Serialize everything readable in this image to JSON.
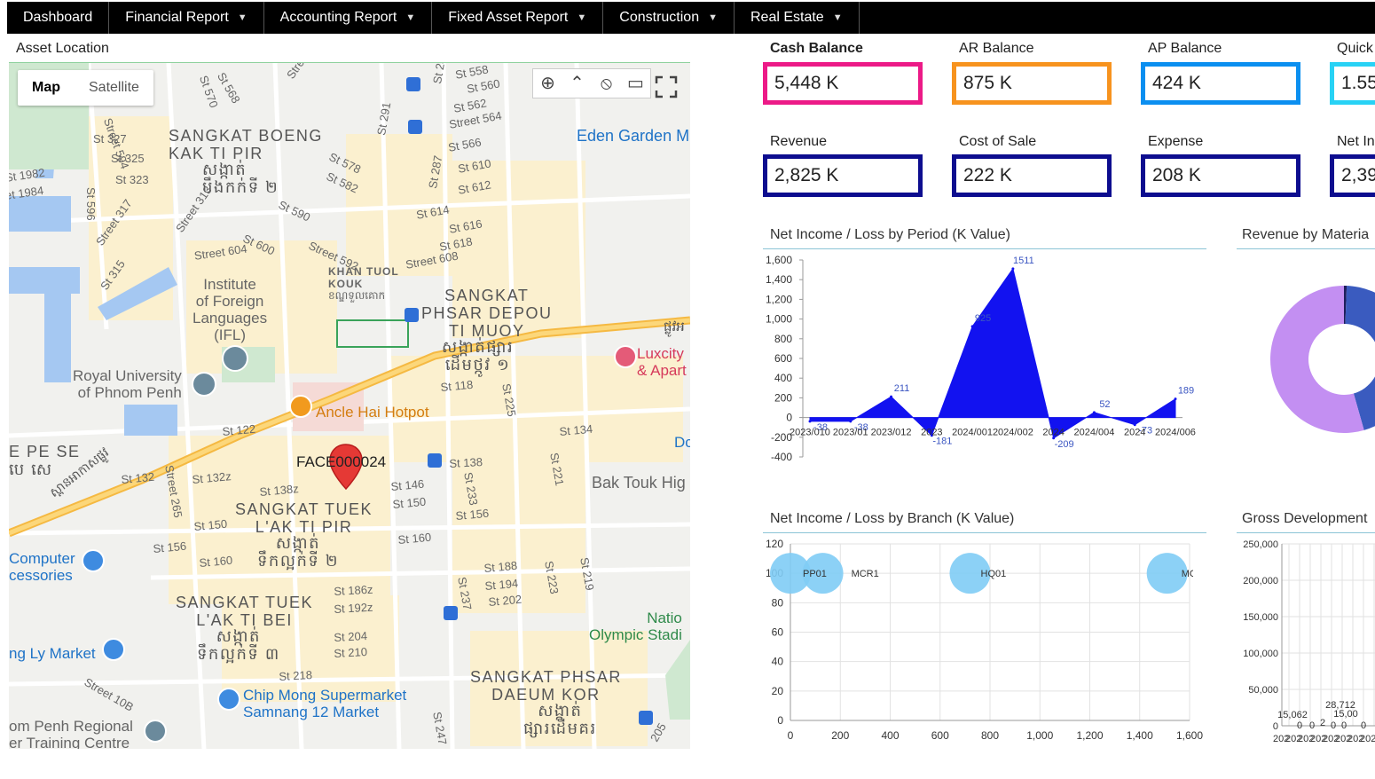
{
  "nav": [
    {
      "label": "Dashboard",
      "dropdown": false
    },
    {
      "label": "Financial Report",
      "dropdown": true
    },
    {
      "label": "Accounting Report",
      "dropdown": true
    },
    {
      "label": "Fixed Asset Report",
      "dropdown": true
    },
    {
      "label": "Construction",
      "dropdown": true
    },
    {
      "label": "Real Estate",
      "dropdown": true
    }
  ],
  "asset_location": {
    "title": "Asset Location",
    "map_tab": "Map",
    "satellite_tab": "Satellite",
    "marker_label": "FACE000024",
    "labels": {
      "boeng": "SANGKAT BOENG\nKAK TI PIR",
      "boeng_km": "សង្កាត់\nបឹងកក់ទី ២",
      "khan": "KHAN TUOL\nKOUK",
      "khan_km": "ខណ្ឌទួលគោក",
      "phsar_depou": "SANGKAT\nPHSAR DEPOU\nTI MUOY",
      "phsar_depou_km": "សង្កាត់ផ្សារ\nដើមថ្កូវ ១",
      "tuek_pir": "SANGKAT TUEK\nL'AK TI PIR",
      "tuek_pir_km": "សង្កាត់\nទឹកល្អក់ទី ២",
      "tuek_bei": "SANGKAT TUEK\nL'AK TI BEI",
      "tuek_bei_km": "សង្កាត់\nទឹកល្អក់ទី ៣",
      "phsar_daeum": "SANGKAT PHSAR\nDAEUM KOR",
      "phsar_daeum_km": "សង្កាត់\nផ្សារដើមគរ",
      "pe_se": "E PE SE\nបេ សេ",
      "institute": "Institute\nof Foreign\nLanguages\n(IFL)",
      "royal_univ": "Royal University\nof Phnom Penh",
      "ancle": "Ancle Hai Hotpot",
      "luxcity": "Luxcity\n& Apart",
      "eden": "Eden Garden M",
      "bak_touk": "Bak Touk Hig",
      "computer": "Computer\ncessories",
      "ly_market": "ng Ly Market",
      "chip_mong": "Chip Mong Supermarket\nSamnang 12 Market",
      "olympic": "Natio\nOlympic Stadi",
      "regional": "om Penh Regional\ner Training Centre",
      "dc": "Dc",
      "road_km": "ស្ពានអាកាសផ្លូវ",
      "road_km2": "ផ្លូវអ",
      "streets": [
        "St 327",
        "St 325",
        "St 323",
        "St 596",
        "Street 594",
        "Street 317",
        "St 315",
        "Street 313",
        "Street 313",
        "St 1982",
        "et 1984",
        "St 570",
        "St 568",
        "St 291",
        "St 287",
        "St 287",
        "St 558",
        "St 560",
        "St 562",
        "Street 564",
        "St 566",
        "St 578",
        "St 582",
        "St 590",
        "St 600",
        "Street 592",
        "Street 604",
        "St 610",
        "St 612",
        "St 614",
        "St 616",
        "St 618",
        "Street 608",
        "St 118",
        "St 225",
        "St 122",
        "St 134",
        "St 138",
        "St 221",
        "St 132",
        "Street 265",
        "St 132z",
        "St 138z",
        "St 146",
        "St 150",
        "St 233",
        "St 156",
        "St 150",
        "St 160",
        "St 156",
        "St 160",
        "St 188",
        "St 194",
        "St 202",
        "St 237",
        "St 223",
        "St 219",
        "St 186z",
        "St 192z",
        "St 204",
        "St 210",
        "St 218",
        "Street 10B",
        "St 247",
        "205"
      ]
    }
  },
  "kpis": [
    {
      "label": "Cash Balance",
      "value": "5,448 K",
      "color": "#ec1a87",
      "bold": true
    },
    {
      "label": "AR Balance",
      "value": "875 K",
      "color": "#f7931e",
      "bold": false
    },
    {
      "label": "AP Balance",
      "value": "424 K",
      "color": "#0b8ff0",
      "bold": false
    },
    {
      "label": "Quick",
      "value": "1.55",
      "color": "#28d2f5",
      "bold": false
    },
    {
      "label": "Revenue",
      "value": "2,825 K",
      "color": "#0d0d8f",
      "bold": false
    },
    {
      "label": "Cost of Sale",
      "value": "222 K",
      "color": "#0d0d8f",
      "bold": false
    },
    {
      "label": "Expense",
      "value": "208 K",
      "color": "#0d0d8f",
      "bold": false
    },
    {
      "label": "Net In",
      "value": "2,39",
      "color": "#0d0d8f",
      "bold": false
    }
  ],
  "chart_data": [
    {
      "type": "area",
      "title": "Net Income / Loss by Period (K Value)",
      "color": "#1212f0",
      "ylim": [
        -400,
        1600
      ],
      "yticks": [
        "1,600",
        "1,400",
        "1,200",
        "1,000",
        "800",
        "600",
        "400",
        "200",
        "0",
        "-200",
        "-400"
      ],
      "categories": [
        "2023/010",
        "2023/011",
        "2023/012",
        "2023/013",
        "2024/001",
        "2024/002",
        "2024/003",
        "2024/004",
        "2024/005",
        "2024/006"
      ],
      "xtick_labels": [
        "2023/010",
        "2023/01",
        "2023/012",
        "2023",
        "2024/001",
        "2024/002",
        "2024",
        "2024/004",
        "2024",
        "2024/006"
      ],
      "values": [
        -38,
        -38,
        211,
        -181,
        925,
        1511,
        -209,
        52,
        -73,
        189
      ]
    },
    {
      "type": "scatter",
      "title": "Net Income / Loss by Branch (K Value)",
      "color": "#7fccf5",
      "ylim": [
        0,
        120
      ],
      "xlim": [
        0,
        1600
      ],
      "yticks": [
        "120",
        "100",
        "80",
        "60",
        "40",
        "20",
        "0"
      ],
      "xticks": [
        "0",
        "200",
        "400",
        "600",
        "800",
        "1,000",
        "1,200",
        "1,400",
        "1,600"
      ],
      "points": [
        {
          "name": "PP01",
          "x": 0,
          "y": 100
        },
        {
          "name": "MCR1",
          "x": 130,
          "y": 100
        },
        {
          "name": "HQ01",
          "x": 720,
          "y": 100
        },
        {
          "name": "MC",
          "x": 1510,
          "y": 100
        }
      ]
    },
    {
      "type": "pie",
      "title": "Revenue by Materia",
      "slices": [
        {
          "value": 0.6,
          "color": "#1f1f5c"
        },
        {
          "value": 45,
          "color": "#3a5bbf"
        },
        {
          "value": 54.4,
          "color": "#c38ff2"
        }
      ]
    },
    {
      "type": "line",
      "title": "Gross Development",
      "ylim": [
        0,
        250000
      ],
      "yticks": [
        "250,000",
        "200,000",
        "150,000",
        "100,000",
        "50,000",
        "0"
      ],
      "data_labels": [
        "28,712",
        "15,062",
        "15,00",
        "0",
        "0",
        "2",
        "0",
        "0",
        "0"
      ],
      "x_label": "202"
    }
  ]
}
